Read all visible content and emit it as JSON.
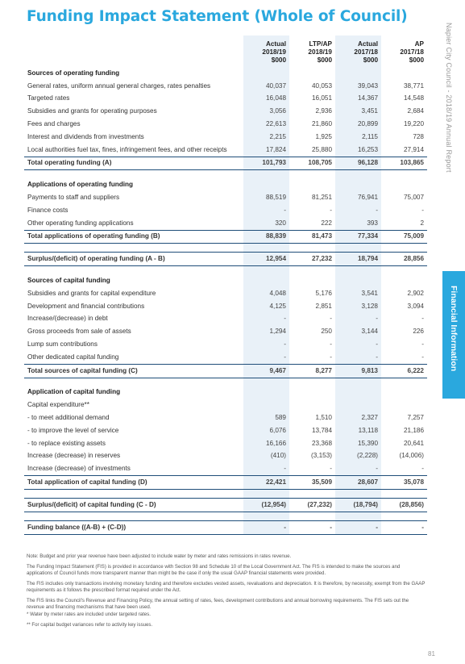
{
  "page": {
    "title": "Funding Impact Statement (Whole of Council)",
    "side_text": "Napier City Council - 2018/19 Annual Report",
    "side_tab": "Financial Information",
    "page_number": "81"
  },
  "table": {
    "columns": [
      {
        "line1": "Actual",
        "line2": "2018/19",
        "line3": "$000"
      },
      {
        "line1": "LTP/AP",
        "line2": "2018/19",
        "line3": "$000"
      },
      {
        "line1": "Actual",
        "line2": "2017/18",
        "line3": "$000"
      },
      {
        "line1": "AP",
        "line2": "2017/18",
        "line3": "$000"
      }
    ],
    "rows": [
      {
        "type": "section",
        "label": "Sources of operating funding",
        "values": [
          "",
          "",
          "",
          ""
        ]
      },
      {
        "type": "item",
        "label": "General rates, uniform annual general charges, rates penalties",
        "values": [
          "40,037",
          "40,053",
          "39,043",
          "38,771"
        ]
      },
      {
        "type": "item",
        "label": "Targeted rates",
        "values": [
          "16,048",
          "16,051",
          "14,367",
          "14,548"
        ]
      },
      {
        "type": "item",
        "label": "Subsidies and grants for operating purposes",
        "values": [
          "3,056",
          "2,936",
          "3,451",
          "2,684"
        ]
      },
      {
        "type": "item",
        "label": "Fees and charges",
        "values": [
          "22,613",
          "21,860",
          "20,899",
          "19,220"
        ]
      },
      {
        "type": "item",
        "label": "Interest and dividends from investments",
        "values": [
          "2,215",
          "1,925",
          "2,115",
          "728"
        ]
      },
      {
        "type": "item",
        "label": "Local authorities fuel tax, fines, infringement fees, and other receipts",
        "values": [
          "17,824",
          "25,880",
          "16,253",
          "27,914"
        ]
      },
      {
        "type": "total",
        "label": "Total operating funding (A)",
        "values": [
          "101,793",
          "108,705",
          "96,128",
          "103,865"
        ]
      },
      {
        "type": "spacer",
        "label": "",
        "values": [
          "",
          "",
          "",
          ""
        ]
      },
      {
        "type": "section",
        "label": "Applications of operating funding",
        "values": [
          "",
          "",
          "",
          ""
        ]
      },
      {
        "type": "item",
        "label": "Payments to staff and suppliers",
        "values": [
          "88,519",
          "81,251",
          "76,941",
          "75,007"
        ]
      },
      {
        "type": "item",
        "label": "Finance costs",
        "values": [
          "-",
          "-",
          "-",
          "-"
        ]
      },
      {
        "type": "item",
        "label": "Other operating funding applications",
        "values": [
          "320",
          "222",
          "393",
          "2"
        ]
      },
      {
        "type": "total",
        "label": "Total applications of operating funding (B)",
        "values": [
          "88,839",
          "81,473",
          "77,334",
          "75,009"
        ]
      },
      {
        "type": "spacer",
        "label": "",
        "values": [
          "",
          "",
          "",
          ""
        ]
      },
      {
        "type": "total",
        "label": "Surplus/(deficit) of operating funding (A - B)",
        "values": [
          "12,954",
          "27,232",
          "18,794",
          "28,856"
        ]
      },
      {
        "type": "spacer",
        "label": "",
        "values": [
          "",
          "",
          "",
          ""
        ]
      },
      {
        "type": "section",
        "label": "Sources of capital funding",
        "values": [
          "",
          "",
          "",
          ""
        ]
      },
      {
        "type": "item",
        "label": "Subsidies and grants for capital expenditure",
        "values": [
          "4,048",
          "5,176",
          "3,541",
          "2,902"
        ]
      },
      {
        "type": "item",
        "label": "Development and financial contributions",
        "values": [
          "4,125",
          "2,851",
          "3,128",
          "3,094"
        ]
      },
      {
        "type": "item",
        "label": "Increase/(decrease) in debt",
        "values": [
          "-",
          "-",
          "-",
          "-"
        ]
      },
      {
        "type": "item",
        "label": "Gross proceeds from sale of assets",
        "values": [
          "1,294",
          "250",
          "3,144",
          "226"
        ]
      },
      {
        "type": "item",
        "label": "Lump sum contributions",
        "values": [
          "-",
          "-",
          "-",
          "-"
        ]
      },
      {
        "type": "item",
        "label": "Other dedicated capital funding",
        "values": [
          "-",
          "-",
          "-",
          "-"
        ]
      },
      {
        "type": "total",
        "label": "Total sources of capital funding (C)",
        "values": [
          "9,467",
          "8,277",
          "9,813",
          "6,222"
        ]
      },
      {
        "type": "spacer",
        "label": "",
        "values": [
          "",
          "",
          "",
          ""
        ]
      },
      {
        "type": "section",
        "label": "Application of capital funding",
        "values": [
          "",
          "",
          "",
          ""
        ]
      },
      {
        "type": "item",
        "label": "Capital expenditure**",
        "values": [
          "",
          "",
          "",
          ""
        ]
      },
      {
        "type": "item",
        "label": "- to meet additional demand",
        "values": [
          "589",
          "1,510",
          "2,327",
          "7,257"
        ]
      },
      {
        "type": "item",
        "label": "- to improve the level of service",
        "values": [
          "6,076",
          "13,784",
          "13,118",
          "21,186"
        ]
      },
      {
        "type": "item",
        "label": "- to replace existing assets",
        "values": [
          "16,166",
          "23,368",
          "15,390",
          "20,641"
        ]
      },
      {
        "type": "item",
        "label": "Increase (decrease) in reserves",
        "values": [
          "(410)",
          "(3,153)",
          "(2,228)",
          "(14,006)"
        ]
      },
      {
        "type": "item",
        "label": "Increase (decrease) of investments",
        "values": [
          "-",
          "-",
          "-",
          "-"
        ]
      },
      {
        "type": "total",
        "label": "Total application of capital funding (D)",
        "values": [
          "22,421",
          "35,509",
          "28,607",
          "35,078"
        ]
      },
      {
        "type": "spacer",
        "label": "",
        "values": [
          "",
          "",
          "",
          ""
        ]
      },
      {
        "type": "total",
        "label": "Surplus/(deficit) of capital funding (C - D)",
        "values": [
          "(12,954)",
          "(27,232)",
          "(18,794)",
          "(28,856)"
        ]
      },
      {
        "type": "spacer",
        "label": "",
        "values": [
          "",
          "",
          "",
          ""
        ]
      },
      {
        "type": "total",
        "label": "Funding balance ((A-B) + (C-D))",
        "values": [
          "-",
          "-",
          "-",
          "-"
        ]
      }
    ]
  },
  "notes": [
    {
      "text": "Note: Budget and prior year revenue have been adjusted to include water by meter and rates remissions in rates revenue.",
      "tight": false
    },
    {
      "text": "The Funding Impact Statement (FIS) is provided in accordance with Section 98 and Schedule 10 of the Local Government Act. The FIS is intended to make the sources and applications of Council funds more transparent manner than might be the case if only the usual GAAP financial statements were provided.",
      "tight": false
    },
    {
      "text": "The FIS includes only transactions involving monetary funding and therefore excludes vested assets, revaluations and depreciation. It is therefore, by necessity, exempt from the GAAP requirements as it follows the prescribed format required under the Act.",
      "tight": false
    },
    {
      "text": "The FIS links the Council's Revenue and Financing Policy, the annual setting of rates, fees, development contributions and annual borrowing requirements. The FIS sets out the revenue and financing mechanisms that have been used.",
      "tight": true
    },
    {
      "text": "* Water by meter rates are included under targeted rates.",
      "tight": false
    },
    {
      "text": "** For capital budget variances refer to activity key issues.",
      "tight": false
    }
  ]
}
